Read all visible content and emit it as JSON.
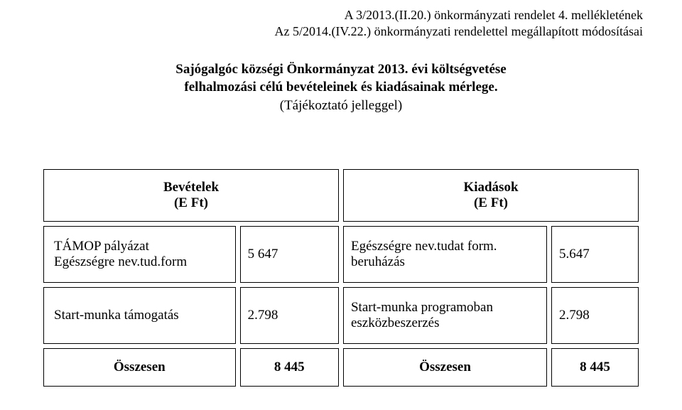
{
  "header": {
    "line1": "A 3/2013.(II.20.) önkormányzati rendelet 4. mellékletének",
    "line2": "Az 5/2014.(IV.22.) önkormányzati rendelettel megállapított módosításai"
  },
  "title": {
    "line1_bold": "Sajógalgóc községi Önkormányzat 2013. évi költségvetése",
    "line2_bold": "felhalmozási célú bevételeinek és kiadásainak mérlege.",
    "line3": "(Tájékoztató jelleggel)"
  },
  "table": {
    "headers": {
      "left_title": "Bevételek",
      "left_unit": "(E Ft)",
      "right_title": "Kiadások",
      "right_unit": "(E Ft)"
    },
    "rows": [
      {
        "left_label_l1": "TÁMOP pályázat",
        "left_label_l2": "Egészségre nev.tud.form",
        "left_value": "5 647",
        "right_label_l1": "Egészségre nev.tudat form.",
        "right_label_l2": "beruházás",
        "right_value": "5.647"
      },
      {
        "left_label_l1": "Start-munka támogatás",
        "left_label_l2": "",
        "left_value": "2.798",
        "right_label_l1": "Start-munka programoban",
        "right_label_l2": "eszközbeszerzés",
        "right_value": "2.798"
      }
    ],
    "totals": {
      "left_label": "Összesen",
      "left_value": "8 445",
      "right_label": "Összesen",
      "right_value": "8 445"
    }
  }
}
